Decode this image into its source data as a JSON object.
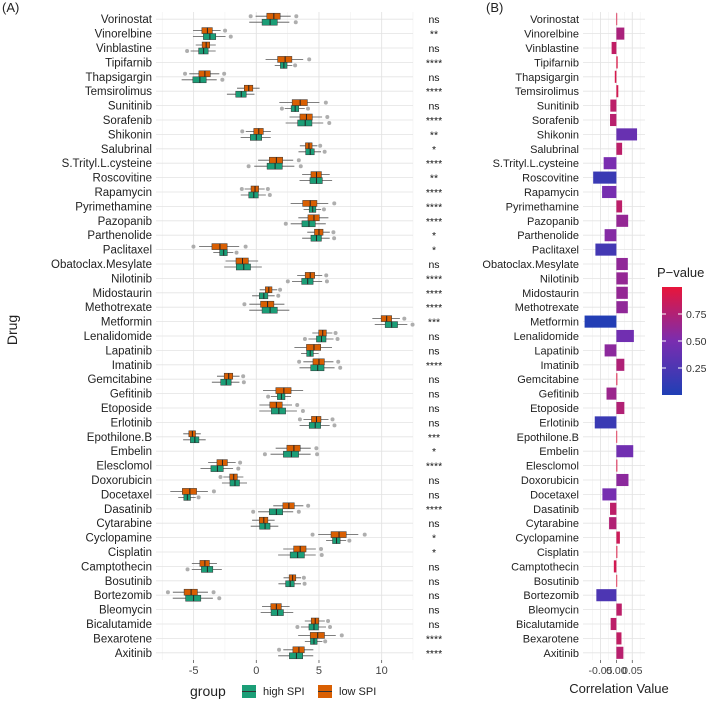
{
  "figure": {
    "panel_a_label": "(A)",
    "panel_b_label": "(B)"
  },
  "colors": {
    "high": "#1b9e77",
    "low": "#d95f02",
    "grid_major": "#e3e3e3",
    "grid_minor": "#f1f1f1",
    "dot": "#9a9a9a",
    "scale_low": "#1f3fb5",
    "scale_mid": "#7a2db0",
    "scale_high": "#e8153a"
  },
  "chart_data": [
    {
      "type": "boxplot",
      "title": "",
      "xlabel": "",
      "ylabel": "Drug",
      "xlim": [
        -8,
        12.5
      ],
      "xticks": [
        -5,
        0,
        5,
        10
      ],
      "legend": {
        "title": "group",
        "position": "bottom",
        "entries": [
          {
            "key": "high",
            "label": "high SPI"
          },
          {
            "key": "low",
            "label": "low SPI"
          }
        ]
      },
      "drugs": [
        "Vorinostat",
        "Vinorelbine",
        "Vinblastine",
        "Tipifarnib",
        "Thapsigargin",
        "Temsirolimus",
        "Sunitinib",
        "Sorafenib",
        "Shikonin",
        "Salubrinal",
        "S.Trityl.L.cysteine",
        "Roscovitine",
        "Rapamycin",
        "Pyrimethamine",
        "Pazopanib",
        "Parthenolide",
        "Paclitaxel",
        "Obatoclax.Mesylate",
        "Nilotinib",
        "Midostaurin",
        "Methotrexate",
        "Metformin",
        "Lenalidomide",
        "Lapatinib",
        "Imatinib",
        "Gemcitabine",
        "Gefitinib",
        "Etoposide",
        "Erlotinib",
        "Epothilone.B",
        "Embelin",
        "Elesclomol",
        "Doxorubicin",
        "Docetaxel",
        "Dasatinib",
        "Cytarabine",
        "Cyclopamine",
        "Cisplatin",
        "Camptothecin",
        "Bosutinib",
        "Bortezomib",
        "Bleomycin",
        "Bicalutamide",
        "Bexarotene",
        "Axitinib"
      ],
      "significance": [
        "ns",
        "**",
        "ns",
        "****",
        "ns",
        "****",
        "ns",
        "****",
        "**",
        "*",
        "****",
        "**",
        "****",
        "****",
        "****",
        "*",
        "*",
        "ns",
        "****",
        "****",
        "****",
        "***",
        "ns",
        "ns",
        "****",
        "ns",
        "ns",
        "ns",
        "ns",
        "***",
        "*",
        "****",
        "ns",
        "ns",
        "****",
        "ns",
        "*",
        "*",
        "ns",
        "ns",
        "ns",
        "ns",
        "ns",
        "****",
        "****"
      ],
      "median_low": [
        1.4,
        -3.9,
        -4.0,
        2.3,
        -4.1,
        -0.6,
        3.5,
        4.0,
        0.2,
        4.2,
        1.6,
        4.8,
        -0.1,
        4.3,
        4.6,
        5.0,
        -2.9,
        -1.1,
        4.3,
        1.0,
        0.9,
        10.4,
        5.3,
        4.6,
        5.0,
        -2.2,
        2.2,
        1.6,
        4.8,
        -5.1,
        3.0,
        -2.7,
        -1.8,
        -5.3,
        2.6,
        0.6,
        6.6,
        3.5,
        -4.1,
        2.9,
        -5.2,
        1.6,
        4.7,
        4.9,
        3.4
      ],
      "median_high": [
        1.1,
        -3.7,
        -4.2,
        2.2,
        -4.5,
        -1.2,
        3.1,
        3.9,
        0.0,
        4.3,
        1.5,
        4.8,
        -0.2,
        4.5,
        4.2,
        4.8,
        -2.6,
        -1.0,
        4.1,
        0.6,
        1.1,
        10.8,
        5.2,
        4.3,
        4.9,
        -2.4,
        2.0,
        1.8,
        4.7,
        -4.9,
        2.8,
        -3.1,
        -1.7,
        -5.5,
        1.6,
        0.7,
        6.4,
        3.3,
        -3.9,
        2.7,
        -5.0,
        1.7,
        4.6,
        4.6,
        3.2
      ]
    },
    {
      "type": "bar",
      "orientation": "horizontal",
      "title": "",
      "xlabel": "Correlation Value",
      "ylabel": "",
      "xlim": [
        -0.105,
        0.09
      ],
      "xticks": [
        -0.05,
        0.0,
        0.05
      ],
      "xtick_labels": [
        "-0.05",
        "0.00",
        "0.05"
      ],
      "categories": [
        "Vorinostat",
        "Vinorelbine",
        "Vinblastine",
        "Tipifarnib",
        "Thapsigargin",
        "Temsirolimus",
        "Sunitinib",
        "Sorafenib",
        "Shikonin",
        "Salubrinal",
        "S.Trityl.L.cysteine",
        "Roscovitine",
        "Rapamycin",
        "Pyrimethamine",
        "Pazopanib",
        "Parthenolide",
        "Paclitaxel",
        "Obatoclax.Mesylate",
        "Nilotinib",
        "Midostaurin",
        "Methotrexate",
        "Metformin",
        "Lenalidomide",
        "Lapatinib",
        "Imatinib",
        "Gemcitabine",
        "Gefitinib",
        "Etoposide",
        "Erlotinib",
        "Epothilone.B",
        "Embelin",
        "Elesclomol",
        "Doxorubicin",
        "Docetaxel",
        "Dasatinib",
        "Cytarabine",
        "Cyclopamine",
        "Cisplatin",
        "Camptothecin",
        "Bosutinib",
        "Bortezomib",
        "Bleomycin",
        "Bicalutamide",
        "Bexarotene",
        "Axitinib"
      ],
      "values": [
        0.002,
        0.025,
        -0.015,
        0.004,
        -0.005,
        0.006,
        -0.019,
        -0.02,
        0.065,
        0.018,
        -0.04,
        -0.073,
        -0.045,
        0.018,
        0.037,
        -0.037,
        -0.066,
        0.036,
        0.036,
        0.036,
        0.036,
        -0.1,
        0.055,
        -0.037,
        0.025,
        0.003,
        -0.031,
        0.025,
        -0.068,
        0.0,
        0.053,
        0.003,
        0.038,
        -0.044,
        -0.02,
        -0.023,
        0.011,
        0.003,
        -0.008,
        0.0,
        -0.063,
        0.017,
        -0.018,
        0.016,
        0.022
      ],
      "p_values": [
        0.96,
        0.72,
        0.82,
        0.95,
        0.92,
        0.9,
        0.8,
        0.78,
        0.4,
        0.8,
        0.5,
        0.15,
        0.48,
        0.8,
        0.62,
        0.55,
        0.2,
        0.6,
        0.62,
        0.62,
        0.6,
        0.02,
        0.45,
        0.58,
        0.74,
        0.97,
        0.65,
        0.75,
        0.15,
        0.99,
        0.45,
        0.95,
        0.58,
        0.48,
        0.8,
        0.75,
        0.87,
        0.96,
        0.9,
        0.99,
        0.25,
        0.8,
        0.8,
        0.82,
        0.78
      ],
      "legend": {
        "title": "P−value",
        "position": "right",
        "ticks": [
          0.25,
          0.5,
          0.75
        ],
        "tick_labels": [
          "0.25",
          "0.50",
          "0.75"
        ],
        "range": [
          0.0,
          1.0
        ]
      }
    }
  ]
}
